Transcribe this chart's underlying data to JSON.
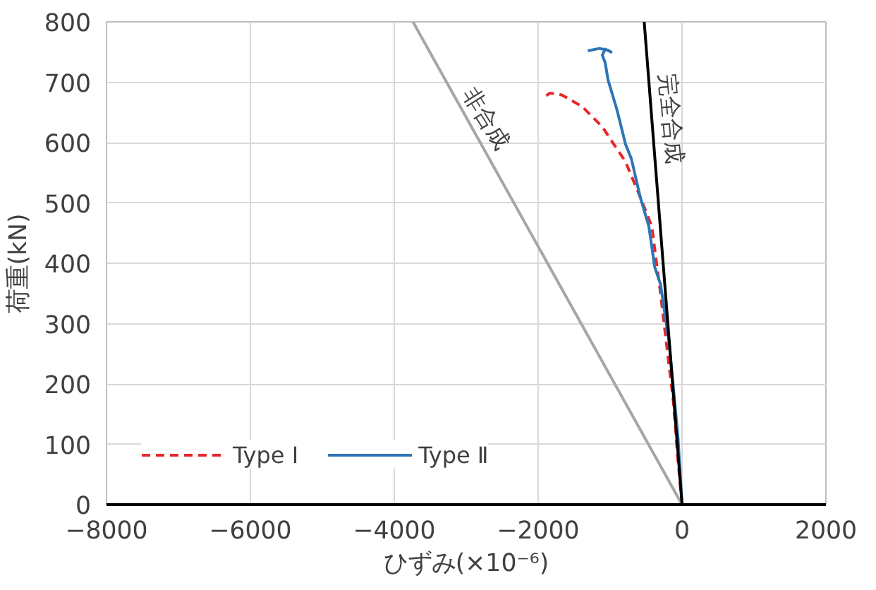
{
  "chart_data": {
    "type": "line",
    "xlabel": "ひずみ(×10⁻⁶)",
    "ylabel": "荷重(kN)",
    "xlim": [
      -8000,
      2000
    ],
    "ylim": [
      0,
      800
    ],
    "xticks": [
      {
        "value": -8000,
        "label": "−8000"
      },
      {
        "value": -6000,
        "label": "−6000"
      },
      {
        "value": -4000,
        "label": "−4000"
      },
      {
        "value": -2000,
        "label": "−2000"
      },
      0,
      2000
    ],
    "yticks": [
      0,
      100,
      200,
      300,
      400,
      500,
      600,
      700,
      800
    ],
    "grid": true,
    "legend": "bottom left",
    "marker": "none",
    "series": [
      {
        "name": "Type Ⅰ",
        "color": "#e8262a",
        "line_style": "dashed",
        "x": [
          0,
          -57,
          -121,
          -218,
          -315,
          -420,
          -582,
          -785,
          -1108,
          -1391,
          -1674,
          -1836,
          -1933
        ],
        "values": [
          0,
          74,
          171,
          268,
          365,
          461,
          510,
          568,
          626,
          660,
          679,
          682,
          674
        ]
      },
      {
        "name": "Type Ⅱ",
        "color": "#2e75b6",
        "line_style": "solid",
        "x": [
          0,
          -57,
          -178,
          -299,
          -380,
          -461,
          -582,
          -704,
          -785,
          -906,
          -1027,
          -1068,
          -1108,
          -1068,
          -987,
          -1027,
          -1148,
          -1310
        ],
        "values": [
          0,
          113,
          268,
          365,
          394,
          461,
          510,
          573,
          597,
          655,
          703,
          732,
          745,
          755,
          750,
          753,
          756,
          752
        ]
      },
      {
        "name": "非合成",
        "color": "#a6a6a6",
        "line_style": "solid",
        "x": [
          0,
          -3740
        ],
        "values": [
          0,
          800
        ]
      },
      {
        "name": "完全合成",
        "color": "#000000",
        "line_style": "solid",
        "x": [
          0,
          -526
        ],
        "values": [
          0,
          800
        ]
      }
    ]
  }
}
